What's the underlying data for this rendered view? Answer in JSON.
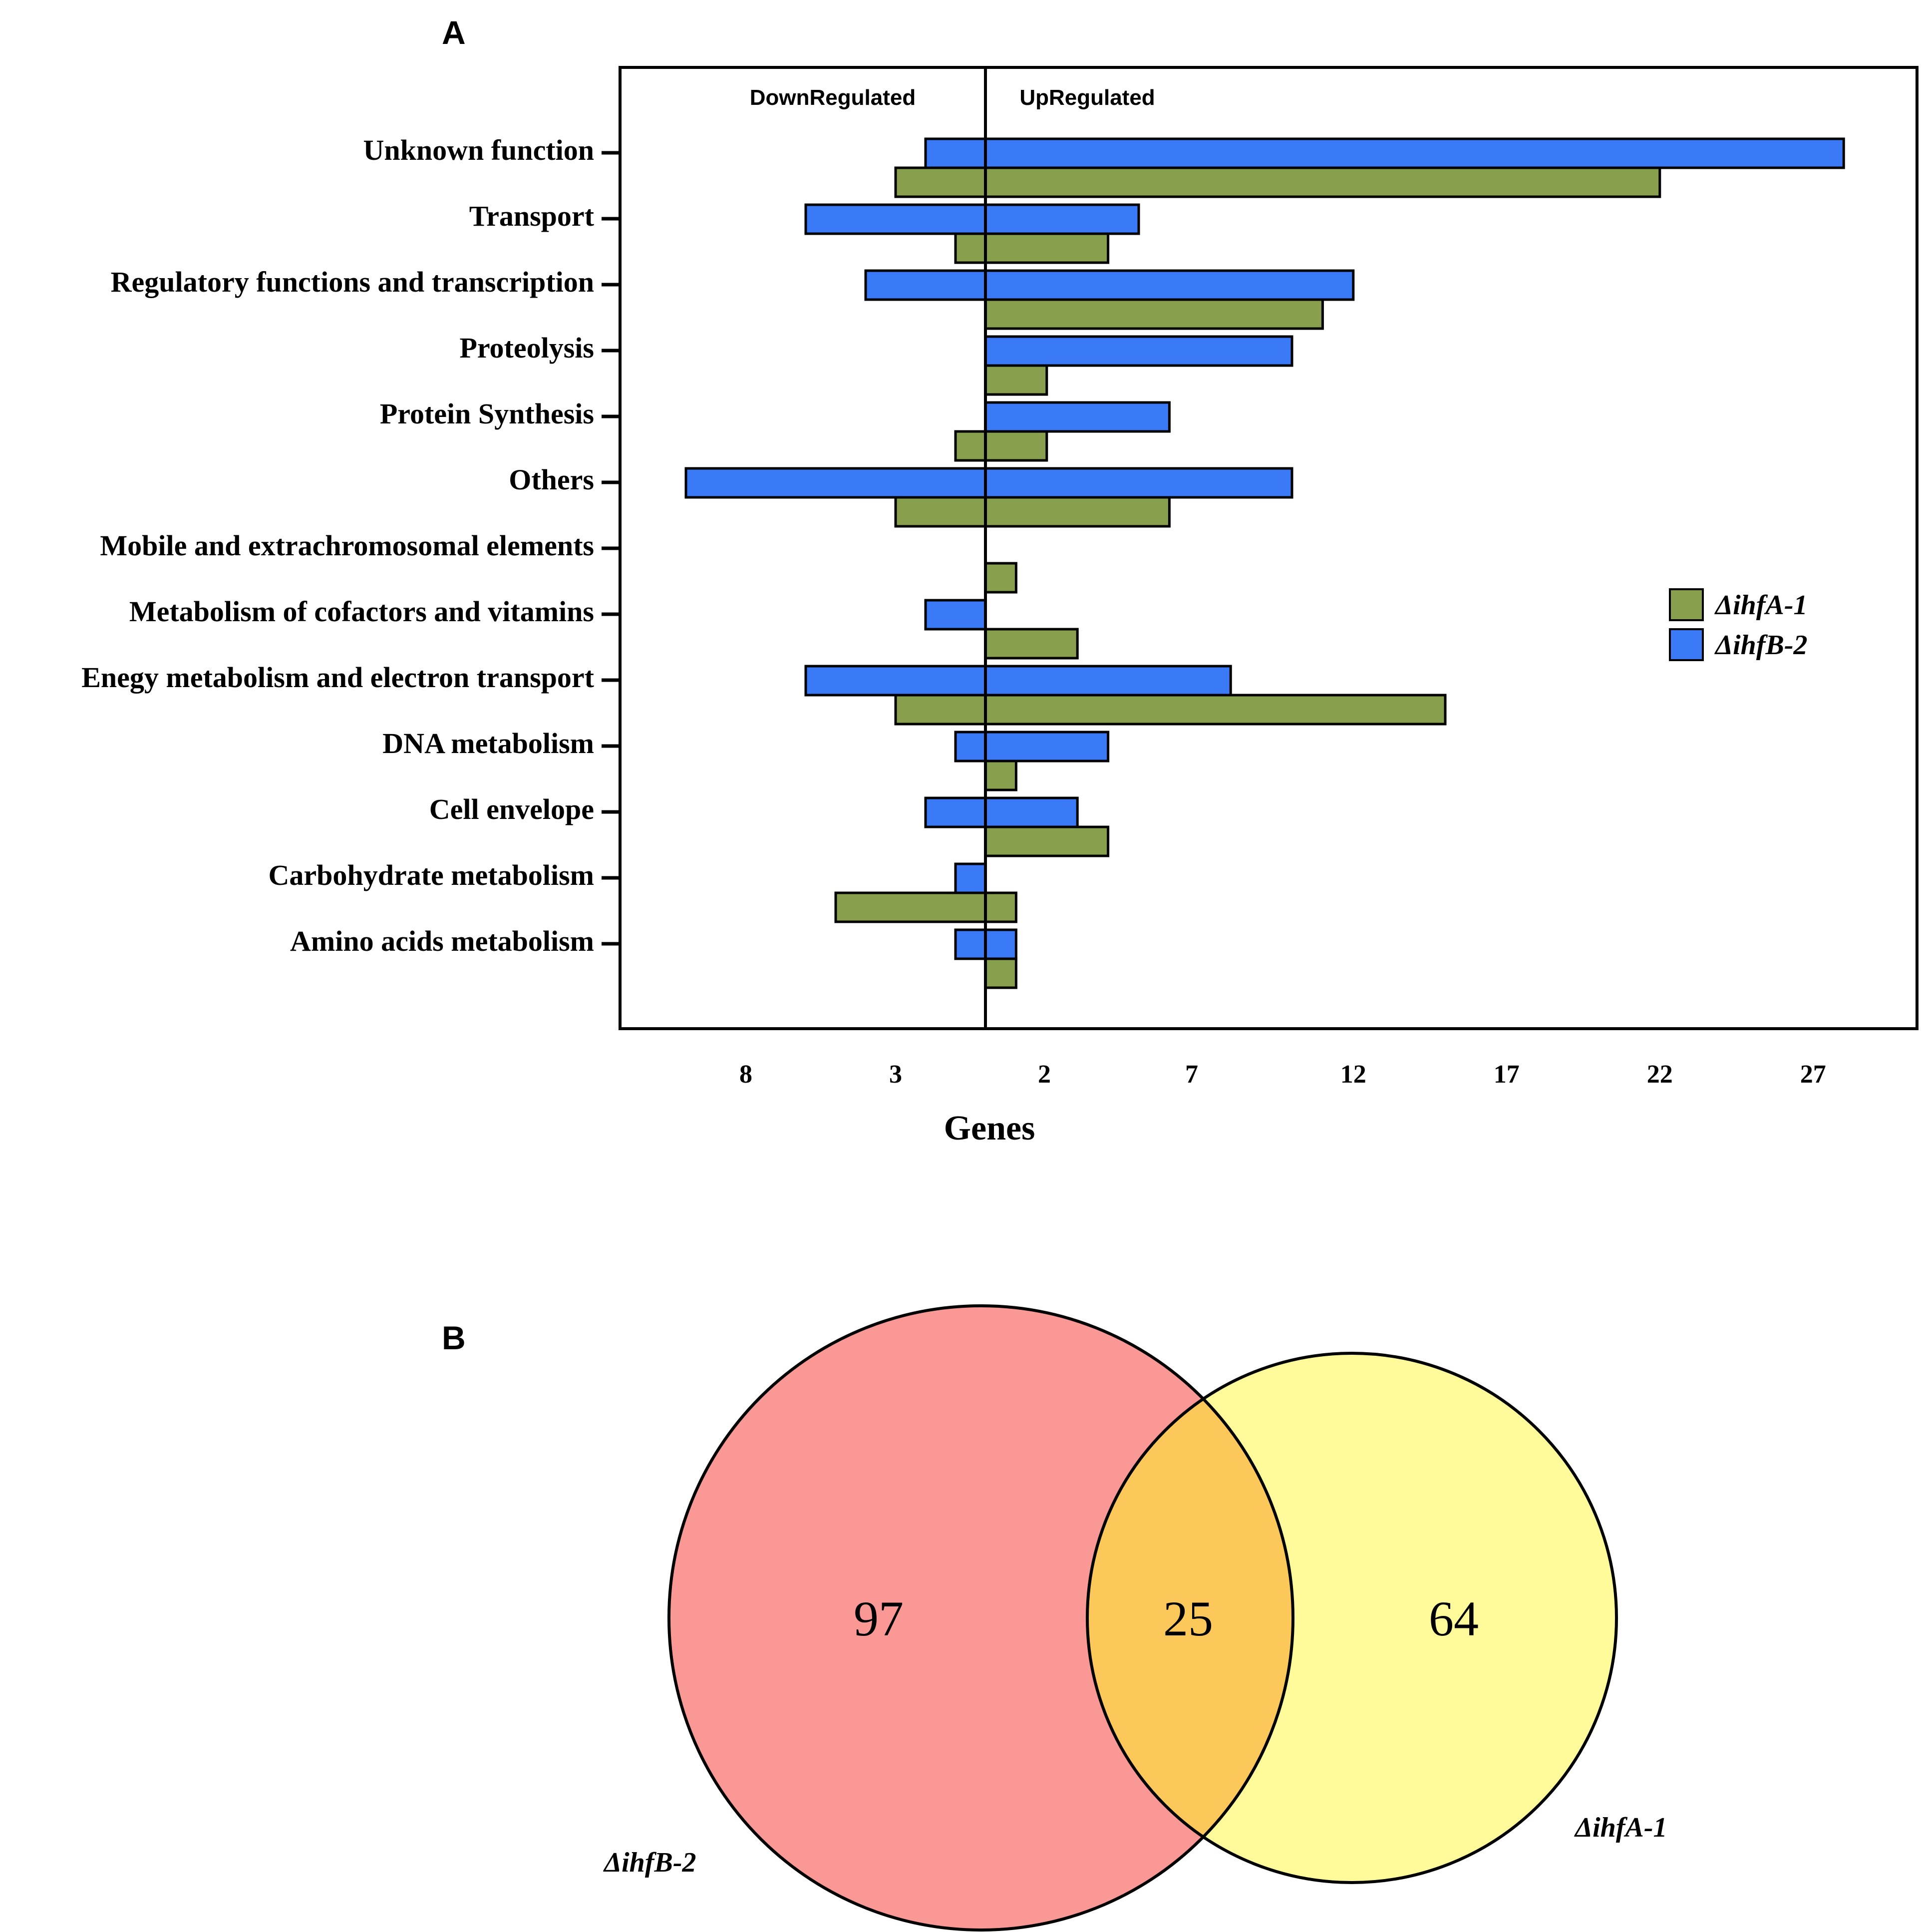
{
  "chart_data": [
    {
      "type": "bar",
      "orientation": "horizontal",
      "panel": "A",
      "region_labels": {
        "down": "DownRegulated",
        "up": "UpRegulated"
      },
      "xlabel": "Genes",
      "xticks": [
        {
          "label": "8",
          "value": -8
        },
        {
          "label": "3",
          "value": -3
        },
        {
          "label": "2",
          "value": 2
        },
        {
          "label": "7",
          "value": 7
        },
        {
          "label": "12",
          "value": 12
        },
        {
          "label": "17",
          "value": 17
        },
        {
          "label": "22",
          "value": 22
        },
        {
          "label": "27",
          "value": 27
        }
      ],
      "xlim": [
        -12,
        30
      ],
      "categories": [
        "Unknown function",
        "Transport",
        "Regulatory functions and transcription",
        "Proteolysis",
        "Protein Synthesis",
        "Others",
        "Mobile and extrachromosomal elements",
        "Metabolism of cofactors and vitamins",
        "Enegy metabolism and electron transport",
        "DNA metabolism",
        "Cell envelope",
        "Carbohydrate metabolism",
        "Amino acids metabolism"
      ],
      "series": [
        {
          "name": "ΔihfB-2",
          "color": "#3B7AF7",
          "down": [
            2,
            6,
            4,
            0,
            0,
            10,
            0,
            2,
            6,
            1,
            2,
            1,
            1
          ],
          "up": [
            28,
            5,
            12,
            10,
            6,
            10,
            0,
            0,
            8,
            4,
            3,
            0,
            1
          ]
        },
        {
          "name": "ΔihfA-1",
          "color": "#88A04E",
          "down": [
            3,
            1,
            0,
            0,
            1,
            3,
            0,
            0,
            3,
            0,
            0,
            5,
            0
          ],
          "up": [
            22,
            4,
            11,
            2,
            2,
            6,
            1,
            3,
            15,
            1,
            4,
            1,
            1
          ]
        }
      ],
      "legend": [
        {
          "label": "ΔihfA-1",
          "color": "#88A04E"
        },
        {
          "label": "ΔihfB-2",
          "color": "#3B7AF7"
        }
      ]
    },
    {
      "type": "venn",
      "panel": "B",
      "sets": [
        {
          "name": "ΔihfB-2",
          "only": 97,
          "color": "#FA9896"
        },
        {
          "name": "ΔihfA-1",
          "only": 64,
          "color": "#FFFB9A"
        }
      ],
      "intersection": 25,
      "intersection_color": "#FDC85A"
    }
  ]
}
